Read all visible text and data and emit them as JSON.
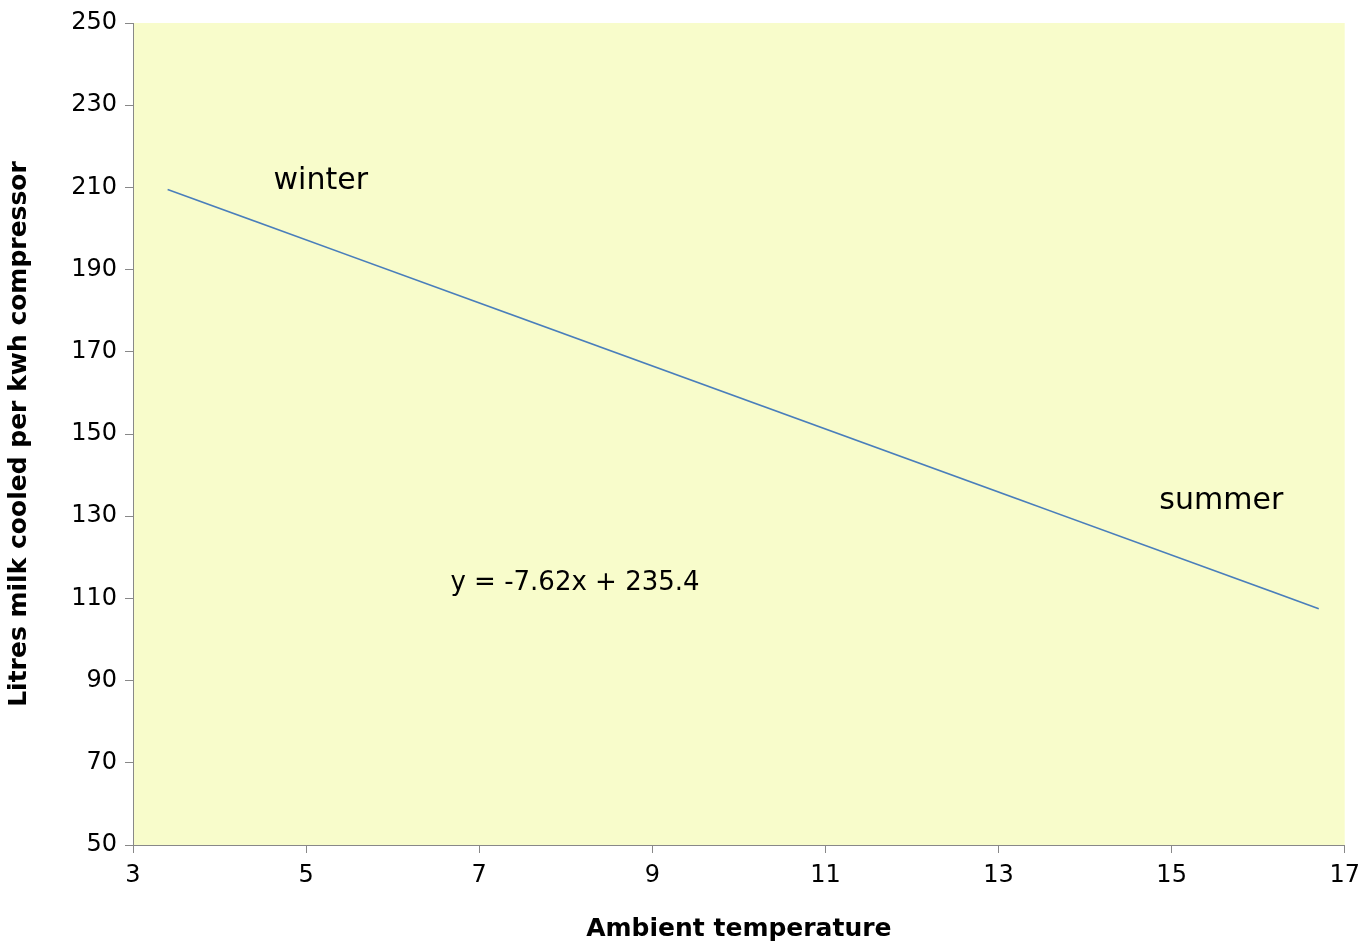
{
  "chart_data": {
    "type": "line",
    "xlabel": "Ambient temperature",
    "ylabel": "Litres milk cooled per kwh compressor",
    "series": [
      {
        "color": "#4a7ebb",
        "x": [
          3.4,
          16.7
        ],
        "values": [
          209.5,
          107.5
        ]
      }
    ],
    "xlim": [
      3,
      17
    ],
    "xticks": [
      3,
      5,
      7,
      9,
      11,
      13,
      15,
      17
    ],
    "ylim": [
      50,
      250
    ],
    "yticks": [
      50,
      70,
      90,
      110,
      130,
      150,
      170,
      190,
      210,
      230,
      250
    ],
    "grid": false,
    "legend": false,
    "marker": "none",
    "line_style": "solid",
    "annotations": [
      "winter",
      "summer",
      "y = -7.62x + 235.4"
    ]
  }
}
